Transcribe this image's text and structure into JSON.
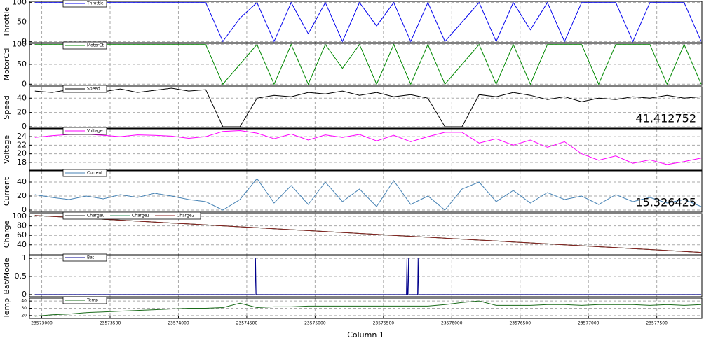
{
  "chart_data": [
    {
      "type": "line",
      "ylabel": "Throttle",
      "xlim": [
        23572910,
        23577830
      ],
      "ylim": [
        -3,
        103
      ],
      "yticks": [
        0,
        50,
        100
      ],
      "grid": true,
      "x": [
        23572950,
        23573075,
        23573200,
        23573325,
        23573450,
        23573575,
        23573700,
        23573825,
        23573950,
        23574075,
        23574200,
        23574325,
        23574450,
        23574575,
        23574700,
        23574825,
        23574950,
        23575075,
        23575200,
        23575325,
        23575450,
        23575575,
        23575700,
        23575825,
        23575950,
        23576075,
        23576200,
        23576325,
        23576450,
        23576575,
        23576700,
        23576825,
        23576950,
        23577075,
        23577200,
        23577325,
        23577450,
        23577575,
        23577700,
        23577825
      ],
      "series": [
        {
          "name": "Throttle",
          "color": "#0000ee",
          "values": [
            100,
            100,
            100,
            100,
            100,
            100,
            100,
            100,
            100,
            100,
            100,
            0,
            60,
            100,
            0,
            100,
            20,
            100,
            0,
            100,
            40,
            100,
            0,
            100,
            0,
            50,
            100,
            0,
            100,
            30,
            100,
            0,
            100,
            100,
            100,
            0,
            100,
            100,
            100,
            0
          ]
        }
      ]
    },
    {
      "type": "line",
      "ylabel": "MotorCtl",
      "xlim": [
        23572910,
        23577830
      ],
      "ylim": [
        -3,
        103
      ],
      "yticks": [
        0,
        50,
        100
      ],
      "grid": true,
      "x": [
        23572950,
        23573075,
        23573200,
        23573325,
        23573450,
        23573575,
        23573700,
        23573825,
        23573950,
        23574075,
        23574200,
        23574325,
        23574450,
        23574575,
        23574700,
        23574825,
        23574950,
        23575075,
        23575200,
        23575325,
        23575450,
        23575575,
        23575700,
        23575825,
        23575950,
        23576075,
        23576200,
        23576325,
        23576450,
        23576575,
        23576700,
        23576825,
        23576950,
        23577075,
        23577200,
        23577325,
        23577450,
        23577575,
        23577700,
        23577825
      ],
      "series": [
        {
          "name": "MotorCtl",
          "color": "#008800",
          "values": [
            100,
            100,
            100,
            100,
            100,
            100,
            100,
            100,
            100,
            100,
            100,
            0,
            50,
            100,
            0,
            100,
            0,
            100,
            40,
            100,
            0,
            100,
            0,
            100,
            0,
            50,
            100,
            0,
            100,
            0,
            100,
            100,
            100,
            0,
            100,
            100,
            100,
            0,
            100,
            0
          ]
        }
      ]
    },
    {
      "type": "line",
      "ylabel": "Speed",
      "xlim": [
        23572910,
        23577830
      ],
      "ylim": [
        -2,
        56
      ],
      "yticks": [
        0,
        20,
        40
      ],
      "grid": true,
      "annotation": "41.412752",
      "x": [
        23572950,
        23573075,
        23573200,
        23573325,
        23573450,
        23573575,
        23573700,
        23573825,
        23573950,
        23574075,
        23574200,
        23574325,
        23574450,
        23574575,
        23574700,
        23574825,
        23574950,
        23575075,
        23575200,
        23575325,
        23575450,
        23575575,
        23575700,
        23575825,
        23575950,
        23576075,
        23576200,
        23576325,
        23576450,
        23576575,
        23576700,
        23576825,
        23576950,
        23577075,
        23577200,
        23577325,
        23577450,
        23577575,
        23577700,
        23577825
      ],
      "series": [
        {
          "name": "Speed",
          "color": "#000000",
          "values": [
            50,
            48,
            52,
            50,
            49,
            53,
            48,
            51,
            54,
            50,
            52,
            0,
            0,
            40,
            44,
            42,
            48,
            46,
            50,
            44,
            48,
            42,
            45,
            40,
            0,
            0,
            45,
            42,
            48,
            44,
            38,
            42,
            35,
            40,
            38,
            42,
            40,
            44,
            40,
            42
          ]
        }
      ]
    },
    {
      "type": "line",
      "ylabel": "Voltage",
      "xlim": [
        23572910,
        23577830
      ],
      "ylim": [
        16.2,
        25.8
      ],
      "yticks": [
        18,
        20,
        22,
        24
      ],
      "grid": true,
      "x": [
        23572950,
        23573075,
        23573200,
        23573325,
        23573450,
        23573575,
        23573700,
        23573825,
        23573950,
        23574075,
        23574200,
        23574325,
        23574450,
        23574575,
        23574700,
        23574825,
        23574950,
        23575075,
        23575200,
        23575325,
        23575450,
        23575575,
        23575700,
        23575825,
        23575950,
        23576075,
        23576200,
        23576325,
        23576450,
        23576575,
        23576700,
        23576825,
        23576950,
        23577075,
        23577200,
        23577325,
        23577450,
        23577575,
        23577700,
        23577825
      ],
      "series": [
        {
          "name": "Voltage",
          "color": "#ff00ff",
          "values": [
            23.8,
            24.2,
            24.5,
            24.6,
            24.3,
            24.0,
            24.4,
            24.3,
            24.1,
            23.6,
            24.0,
            25.2,
            25.4,
            24.8,
            23.5,
            24.6,
            23.2,
            24.4,
            23.8,
            24.5,
            23.0,
            24.3,
            22.8,
            24.0,
            25.0,
            25.0,
            22.5,
            23.5,
            22.0,
            23.2,
            21.5,
            22.8,
            20.0,
            18.5,
            19.5,
            17.8,
            18.6,
            17.5,
            18.2,
            19.0
          ]
        }
      ]
    },
    {
      "type": "line",
      "ylabel": "Current",
      "xlim": [
        23572910,
        23577830
      ],
      "ylim": [
        -3,
        56
      ],
      "yticks": [
        0,
        20,
        40
      ],
      "grid": true,
      "annotation": "15.326425",
      "x": [
        23572950,
        23573075,
        23573200,
        23573325,
        23573450,
        23573575,
        23573700,
        23573825,
        23573950,
        23574075,
        23574200,
        23574325,
        23574450,
        23574575,
        23574700,
        23574825,
        23574950,
        23575075,
        23575200,
        23575325,
        23575450,
        23575575,
        23575700,
        23575825,
        23575950,
        23576075,
        23576200,
        23576325,
        23576450,
        23576575,
        23576700,
        23576825,
        23576950,
        23577075,
        23577200,
        23577325,
        23577450,
        23577575,
        23577700,
        23577825
      ],
      "series": [
        {
          "name": "Current",
          "color": "#4682b4",
          "values": [
            22,
            18,
            15,
            20,
            16,
            22,
            18,
            24,
            20,
            15,
            12,
            0,
            15,
            45,
            10,
            35,
            8,
            40,
            12,
            30,
            5,
            42,
            8,
            20,
            0,
            30,
            40,
            12,
            28,
            10,
            25,
            15,
            20,
            8,
            22,
            12,
            18,
            10,
            15,
            5
          ]
        }
      ]
    },
    {
      "type": "line",
      "ylabel": "Charge",
      "xlim": [
        23572910,
        23577830
      ],
      "ylim": [
        19,
        106
      ],
      "yticks": [
        40,
        60,
        80,
        100
      ],
      "grid": true,
      "x": [
        23572950,
        23573075,
        23573200,
        23573325,
        23573450,
        23573575,
        23573700,
        23573825,
        23573950,
        23574075,
        23574200,
        23574325,
        23574450,
        23574575,
        23574700,
        23574825,
        23574950,
        23575075,
        23575200,
        23575325,
        23575450,
        23575575,
        23575700,
        23575825,
        23575950,
        23576075,
        23576200,
        23576325,
        23576450,
        23576575,
        23576700,
        23576825,
        23576950,
        23577075,
        23577200,
        23577325,
        23577450,
        23577575,
        23577700,
        23577825
      ],
      "series": [
        {
          "name": "Charge0",
          "color": "#222222",
          "values": [
            102,
            100,
            98,
            96,
            94,
            92,
            90,
            88,
            86,
            84,
            82,
            80,
            78,
            76,
            74,
            72,
            70,
            68,
            66,
            64,
            62,
            60,
            58,
            56,
            54,
            52,
            50,
            48,
            46,
            44,
            42,
            40,
            38,
            36,
            34,
            32,
            30,
            28,
            26,
            24
          ]
        },
        {
          "name": "Charge1",
          "color": "#2e8b57",
          "values": [
            102,
            100,
            98,
            96,
            94,
            92,
            90,
            88,
            86,
            84,
            82,
            80,
            78,
            76,
            74,
            72,
            70,
            68,
            66,
            64,
            62,
            60,
            58,
            56,
            54,
            52,
            50,
            48,
            46,
            44,
            42,
            40,
            38,
            36,
            34,
            32,
            30,
            28,
            26,
            24
          ]
        },
        {
          "name": "Charge2",
          "color": "#8b2020",
          "values": [
            102,
            100,
            98,
            96,
            94,
            92,
            90,
            88,
            86,
            84,
            82,
            80,
            78,
            76,
            74,
            72,
            70,
            68,
            66,
            64,
            62,
            60,
            58,
            56,
            54,
            52,
            50,
            48,
            46,
            44,
            42,
            40,
            38,
            36,
            34,
            32,
            30,
            28,
            26,
            24
          ]
        }
      ]
    },
    {
      "type": "line",
      "ylabel": "Bat/Mode",
      "xlim": [
        23572910,
        23577830
      ],
      "ylim": [
        -0.06,
        1.08
      ],
      "yticks": [
        0,
        0.5,
        1
      ],
      "grid": true,
      "x": [
        23572950,
        23574560,
        23574564,
        23574568,
        23575668,
        23575672,
        23575676,
        23575680,
        23575684,
        23575688,
        23575750,
        23575754,
        23575758,
        23577825
      ],
      "series": [
        {
          "name": "Bat",
          "color": "#00008b",
          "values": [
            0,
            0,
            1,
            0,
            0,
            1,
            0,
            0,
            1,
            0,
            0,
            1,
            0,
            0
          ]
        }
      ]
    },
    {
      "type": "line",
      "ylabel": "Temp",
      "xlim": [
        23572910,
        23577830
      ],
      "ylim": [
        16,
        44
      ],
      "yticks": [
        20,
        30,
        40
      ],
      "grid": true,
      "xlabel": "Column 1",
      "xticks": [
        23573000,
        23573500,
        23574000,
        23574500,
        23575000,
        23575500,
        23576000,
        23576500,
        23577000,
        23577500
      ],
      "x": [
        23572950,
        23573075,
        23573200,
        23573325,
        23573450,
        23573575,
        23573700,
        23573825,
        23573950,
        23574075,
        23574200,
        23574325,
        23574450,
        23574575,
        23574700,
        23574825,
        23574950,
        23575075,
        23575200,
        23575325,
        23575450,
        23575575,
        23575700,
        23575825,
        23575950,
        23576075,
        23576200,
        23576325,
        23576450,
        23576575,
        23576700,
        23576825,
        23576950,
        23577075,
        23577200,
        23577325,
        23577450,
        23577575,
        23577700,
        23577825
      ],
      "series": [
        {
          "name": "Temp",
          "color": "#1a6b1a",
          "values": [
            19,
            21,
            22,
            24,
            25,
            26,
            27,
            28,
            29,
            30,
            30,
            31,
            37,
            31,
            32,
            32,
            33,
            33,
            33,
            33,
            33,
            33,
            33,
            33,
            35,
            38,
            40,
            34,
            34,
            34,
            35,
            35,
            34,
            35,
            35,
            35,
            34,
            35,
            34,
            35
          ]
        }
      ]
    }
  ]
}
